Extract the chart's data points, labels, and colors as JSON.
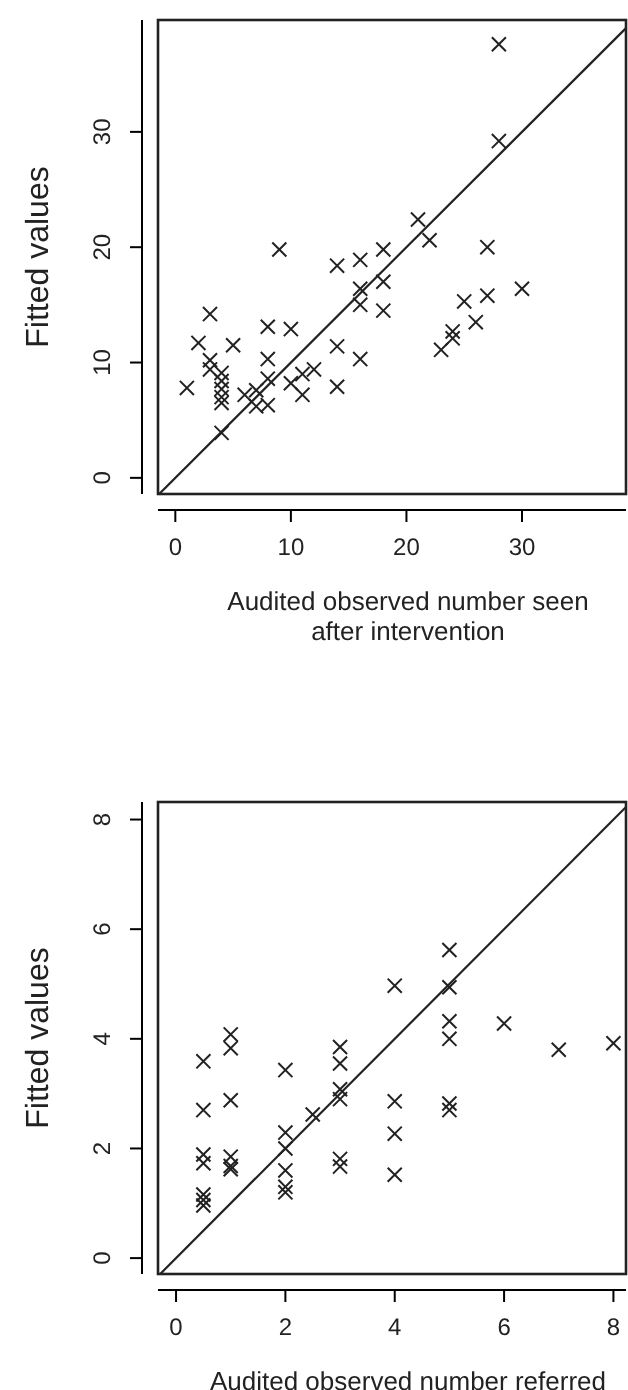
{
  "chart_data": [
    {
      "type": "scatter",
      "xlabel": "Audited observed number seen\nafter intervention",
      "ylabel": "Fitted values",
      "xlim": [
        -1.5,
        39
      ],
      "ylim": [
        -1.4,
        39.7
      ],
      "xticks": [
        0,
        10,
        20,
        30
      ],
      "yticks": [
        0,
        10,
        20,
        30
      ],
      "marker": "cross",
      "grid": false,
      "series": [
        {
          "color": "#222222",
          "x": [
            28,
            28,
            21,
            22,
            9,
            14,
            16,
            18,
            27,
            16,
            18,
            16,
            18,
            30,
            27,
            25,
            26,
            24,
            24,
            23,
            3,
            8,
            10,
            2,
            5,
            14,
            3,
            3,
            8,
            16,
            1,
            4,
            4,
            4,
            4,
            4,
            6,
            7,
            7,
            8,
            8,
            10,
            11,
            11,
            12,
            14,
            4
          ],
          "values": [
            37.6,
            29.2,
            22.4,
            20.6,
            19.8,
            18.4,
            18.9,
            19.8,
            20,
            16.4,
            17,
            15,
            14.5,
            16.4,
            15.8,
            15.3,
            13.5,
            12.7,
            12.1,
            11.1,
            14.2,
            13.1,
            12.9,
            11.7,
            11.5,
            11.4,
            10.2,
            9.4,
            10.3,
            10.3,
            7.8,
            9.1,
            8.4,
            7.7,
            7,
            6.5,
            7.2,
            6.2,
            7.6,
            6.3,
            8.6,
            8.2,
            9,
            7.2,
            9.4,
            7.9,
            3.9
          ]
        },
        {
          "type": "line",
          "color": "#222222",
          "x": [
            -1.4,
            39
          ],
          "values": [
            -1.4,
            39
          ],
          "marker": "none"
        }
      ]
    },
    {
      "type": "scatter",
      "xlabel": "Audited observed number referred",
      "ylabel": "Fitted values",
      "xlim": [
        -0.33,
        8.23
      ],
      "ylim": [
        -0.29,
        8.32
      ],
      "xticks": [
        0,
        2,
        4,
        6,
        8
      ],
      "yticks": [
        0,
        2,
        4,
        6,
        8
      ],
      "marker": "cross",
      "grid": false,
      "series": [
        {
          "color": "#222222",
          "x": [
            5,
            4,
            5,
            5,
            6,
            5,
            7,
            8,
            5,
            5,
            0.5,
            0.5,
            0.5,
            0.5,
            0.5,
            0.5,
            0.5,
            1,
            1,
            1,
            1,
            1,
            1,
            2,
            2,
            2,
            2,
            2,
            2,
            2.5,
            3,
            3,
            3,
            3,
            3,
            3,
            4,
            4,
            4
          ],
          "values": [
            5.62,
            4.97,
            4.94,
            4.32,
            4.28,
            4,
            3.8,
            3.92,
            2.82,
            2.7,
            3.59,
            2.7,
            1.89,
            1.73,
            1.16,
            1.06,
            0.96,
            4.08,
            3.83,
            2.88,
            1.85,
            1.68,
            1.62,
            3.43,
            2.29,
            2,
            1.6,
            1.3,
            1.2,
            2.62,
            3.85,
            3.55,
            3.08,
            2.9,
            1.81,
            1.67,
            2.86,
            2.27,
            1.52
          ]
        },
        {
          "type": "line",
          "color": "#222222",
          "x": [
            -0.29,
            8.23
          ],
          "values": [
            -0.29,
            8.23
          ],
          "marker": "none"
        }
      ]
    }
  ]
}
